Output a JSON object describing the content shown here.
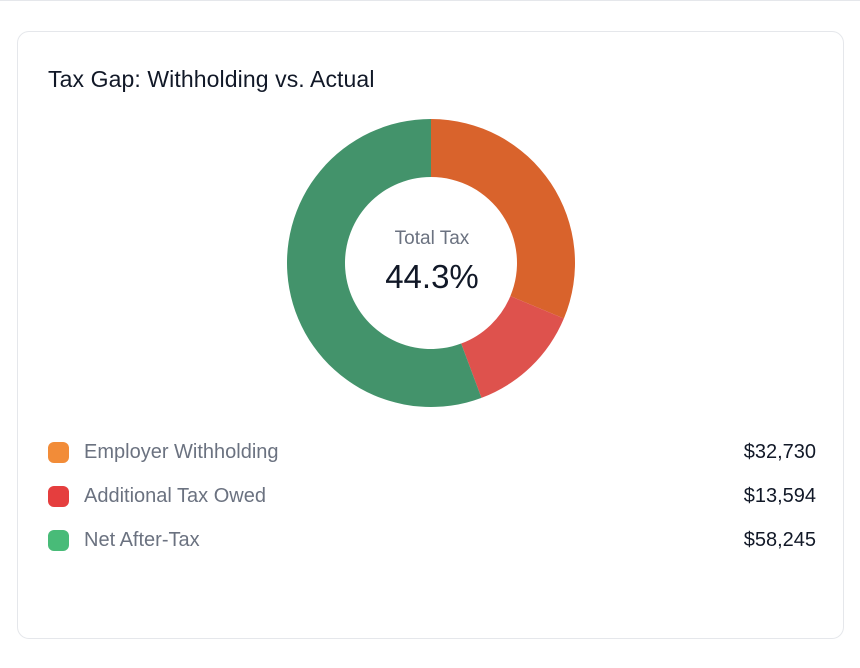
{
  "card": {
    "title": "Tax Gap: Withholding vs. Actual",
    "center_label": "Total Tax",
    "center_value": "44.3%"
  },
  "legend": [
    {
      "label": "Employer Withholding",
      "value": "$32,730",
      "swatch_color": "#f28c38"
    },
    {
      "label": "Additional Tax Owed",
      "value": "$13,594",
      "swatch_color": "#e53e3e"
    },
    {
      "label": "Net After-Tax",
      "value": "$58,245",
      "swatch_color": "#48bb78"
    }
  ],
  "chart_data": {
    "type": "pie",
    "title": "Tax Gap: Withholding vs. Actual",
    "categories": [
      "Employer Withholding",
      "Additional Tax Owed",
      "Net After-Tax"
    ],
    "values": [
      32730,
      13594,
      58245
    ],
    "colors": [
      "#d9632c",
      "#de524d",
      "#43936b"
    ],
    "donut": true,
    "center_text": "44.3%",
    "legend_position": "bottom"
  }
}
